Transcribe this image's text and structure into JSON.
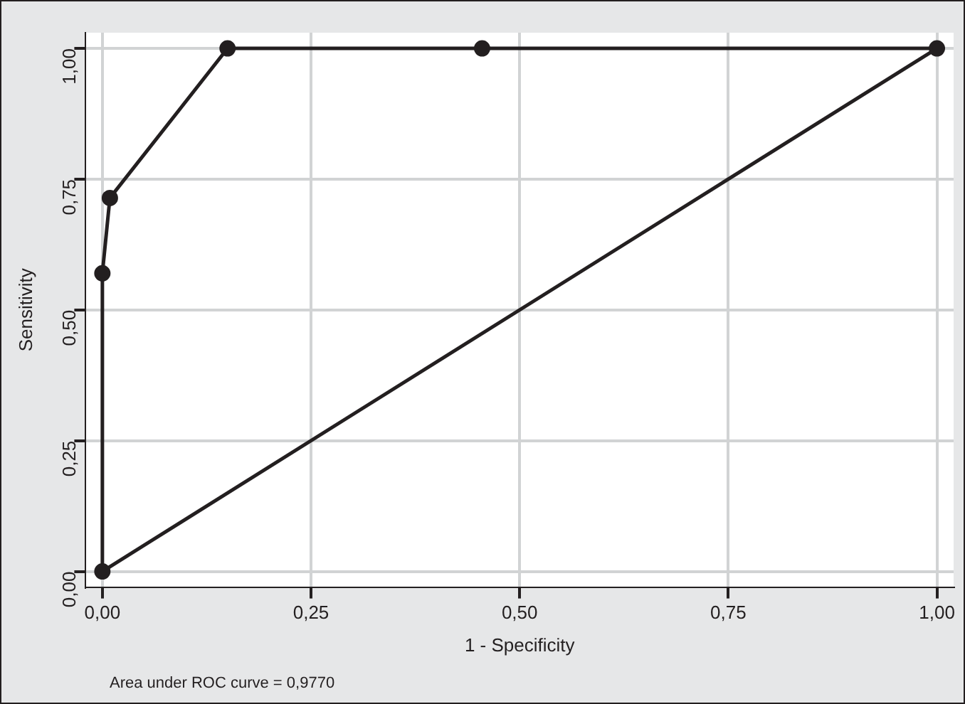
{
  "chart_data": {
    "type": "line",
    "xlabel": "1 - Specificity",
    "ylabel": "Sensitivity",
    "xlim": [
      -0.02,
      1.02
    ],
    "ylim": [
      -0.03,
      1.03
    ],
    "xticks": [
      {
        "value": 0,
        "label": "0,00"
      },
      {
        "value": 0.25,
        "label": "0,25"
      },
      {
        "value": 0.5,
        "label": "0,50"
      },
      {
        "value": 0.75,
        "label": "0,75"
      },
      {
        "value": 1,
        "label": "1,00"
      }
    ],
    "yticks": [
      {
        "value": 0,
        "label": "0,00"
      },
      {
        "value": 0.25,
        "label": "0,25"
      },
      {
        "value": 0.5,
        "label": "0,50"
      },
      {
        "value": 0.75,
        "label": "0,75"
      },
      {
        "value": 1,
        "label": "1,00"
      }
    ],
    "grid": true,
    "legend": false,
    "series": [
      {
        "color": "#231f20",
        "marker": "circle",
        "x": [
          0,
          0,
          0.009,
          0.15,
          0.455,
          1
        ],
        "values": [
          0,
          0.57,
          0.714,
          1,
          1,
          1
        ]
      },
      {
        "color": "#231f20",
        "marker": "none",
        "x": [
          0,
          1
        ],
        "values": [
          0,
          1
        ]
      }
    ],
    "annotations": [
      "Area under ROC curve = 0,9770"
    ]
  }
}
